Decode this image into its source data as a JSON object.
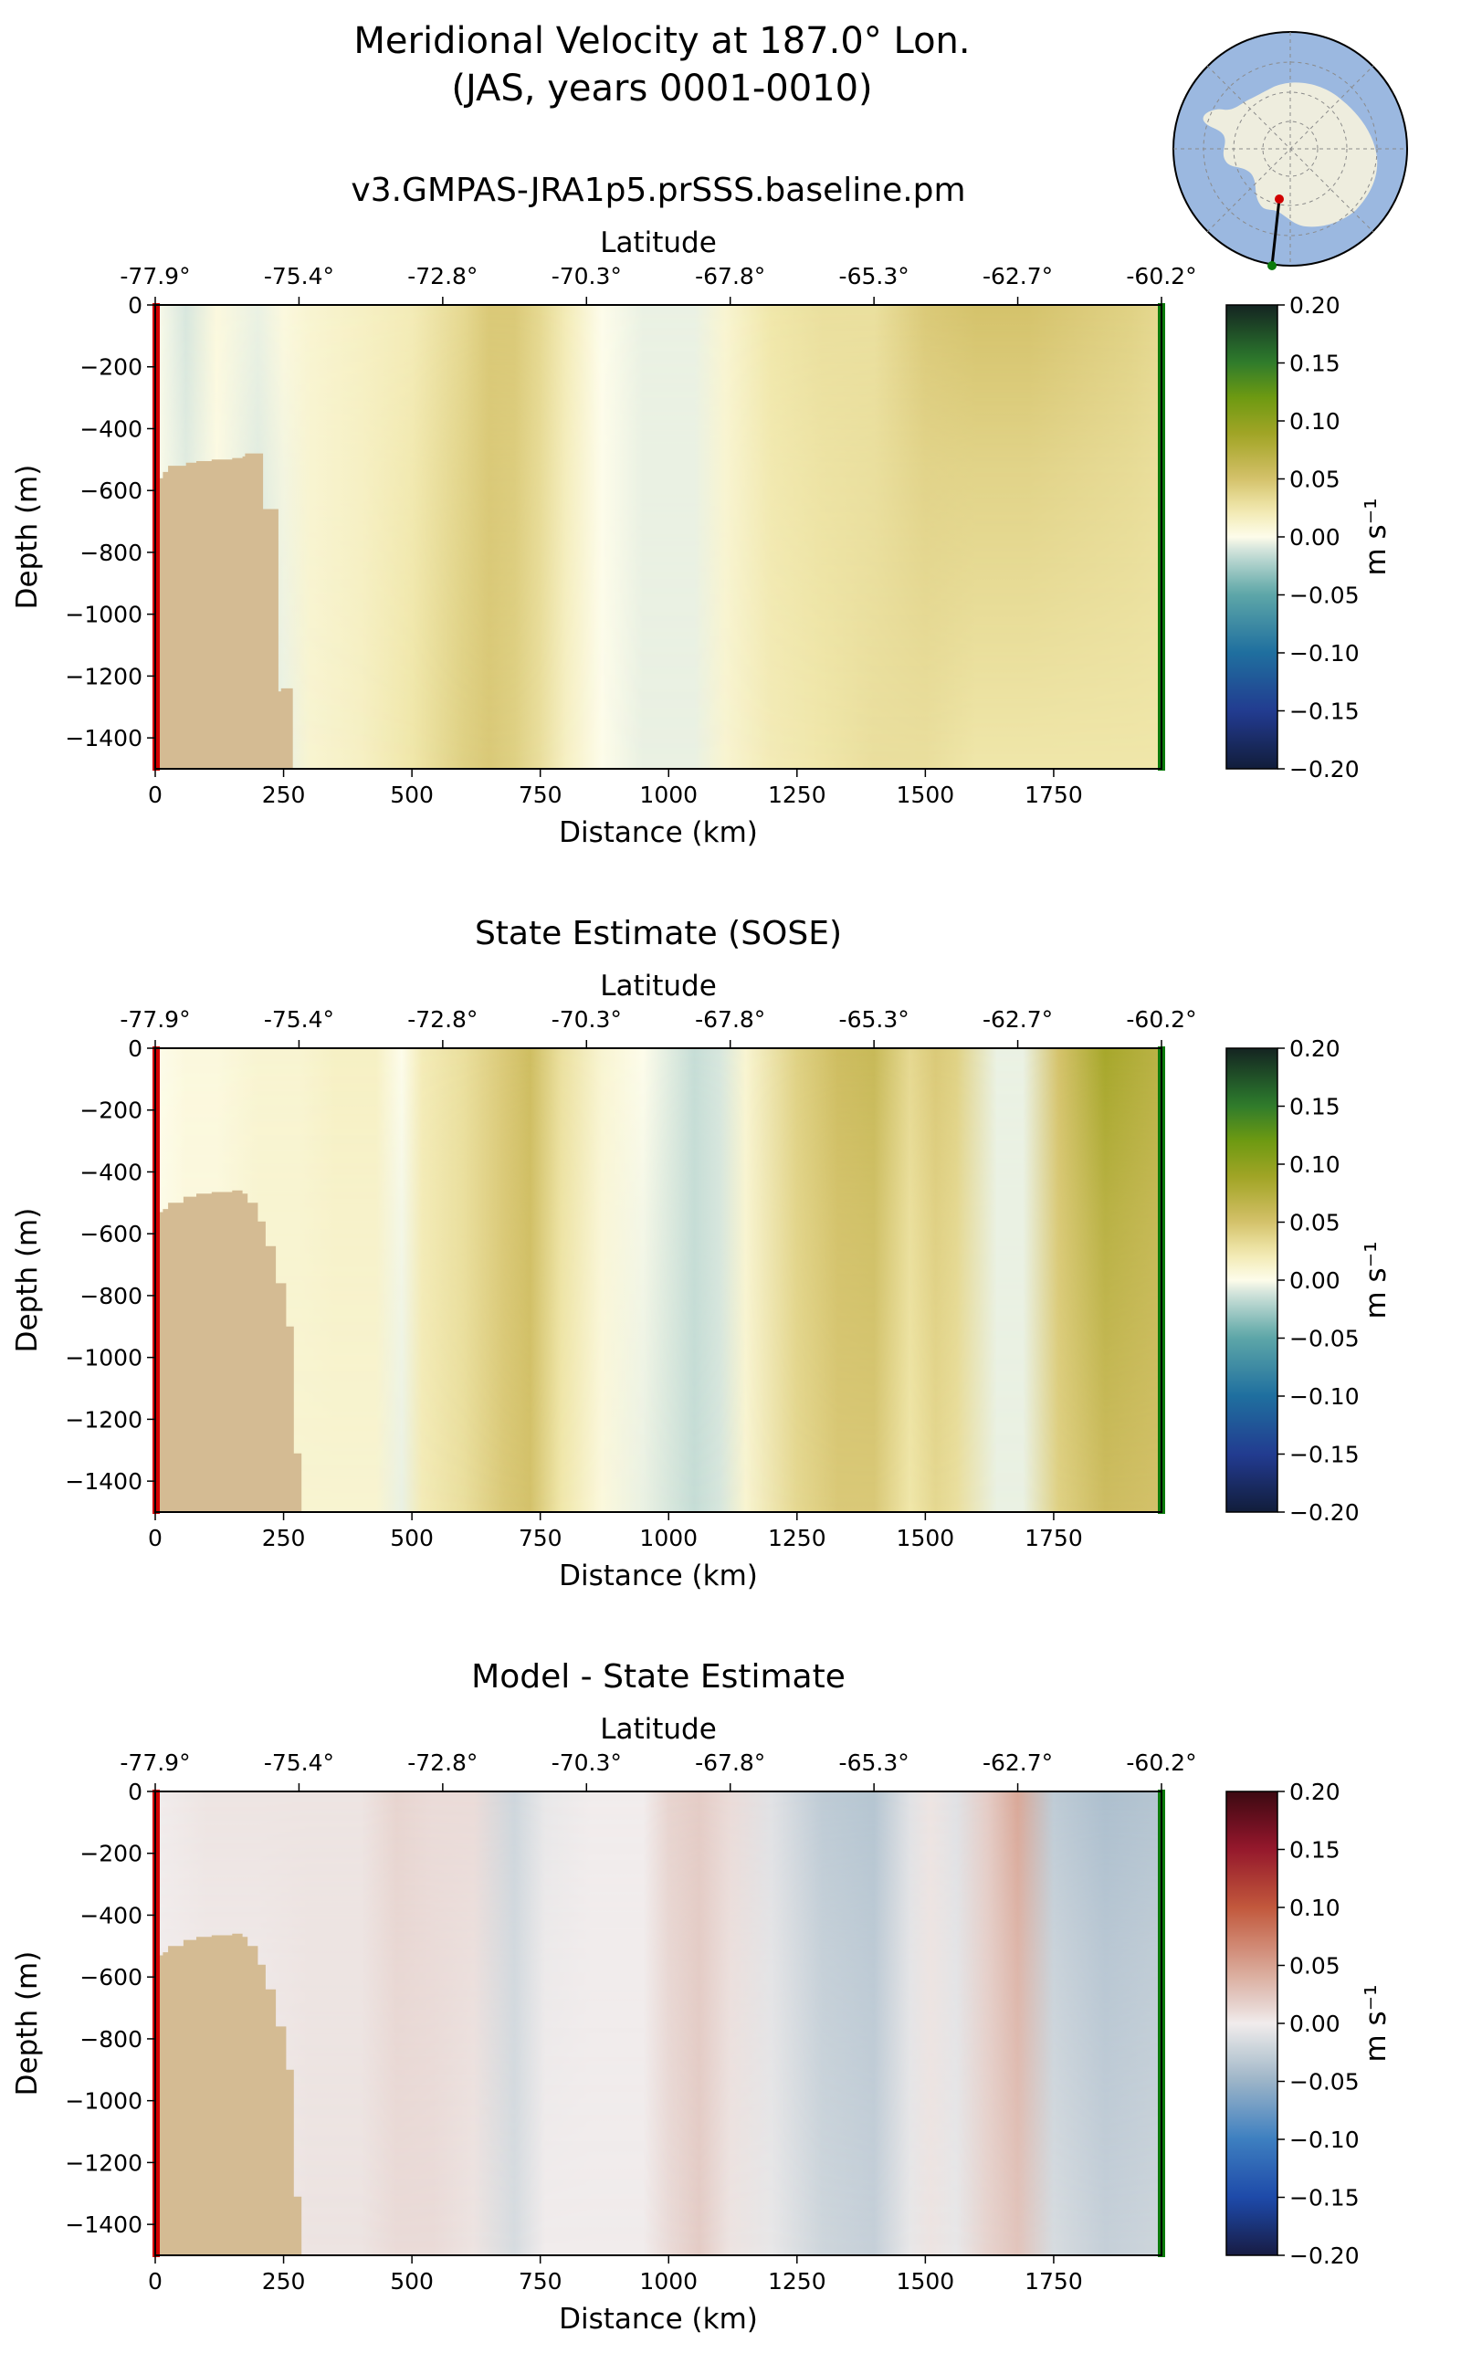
{
  "figure": {
    "title_line1": "Meridional Velocity at 187.0° Lon.",
    "title_line2": "(JAS, years 0001-0010)"
  },
  "inset_map": {
    "description": "Antarctic polar stereographic map with transect line from red start point near coast to green end point offshore"
  },
  "colors": {
    "ocean": "#9bb8e0",
    "land": "#eeedde",
    "bathymetry": "#d4bb93",
    "start_marker": "#d10000",
    "end_marker": "#0b7a0b"
  },
  "chart_data": [
    {
      "type": "heatmap",
      "title": "v3.GMPAS-JRA1p5.prSSS.baseline.pm",
      "xlabel": "Distance (km)",
      "ylabel": "Depth (m)",
      "top_xlabel": "Latitude",
      "xlim": [
        0,
        1960
      ],
      "ylim": [
        -1500,
        0
      ],
      "x_ticks": [
        0,
        250,
        500,
        750,
        1000,
        1250,
        1500,
        1750
      ],
      "y_ticks": [
        0,
        -200,
        -400,
        -600,
        -800,
        -1000,
        -1200,
        -1400
      ],
      "lat_ticks": [
        "-77.9°",
        "-75.4°",
        "-72.8°",
        "-70.3°",
        "-67.8°",
        "-65.3°",
        "-62.7°",
        "-60.2°"
      ],
      "colorbar": {
        "label": "m s⁻¹",
        "min": -0.2,
        "max": 0.2,
        "ticks": [
          0.2,
          0.15,
          0.1,
          0.05,
          0.0,
          -0.05,
          -0.1,
          -0.15,
          -0.2
        ],
        "colormap": "delta"
      },
      "columns_km": [
        0,
        60,
        120,
        200,
        250,
        300,
        400,
        500,
        600,
        650,
        700,
        750,
        800,
        870,
        950,
        1050,
        1110,
        1200,
        1300,
        1400,
        1500,
        1600,
        1700,
        1800,
        1900,
        1960
      ],
      "surface_values": [
        0.0,
        -0.01,
        0.005,
        -0.005,
        0.005,
        0.01,
        0.015,
        0.02,
        0.035,
        0.045,
        0.045,
        0.035,
        0.02,
        0.0,
        -0.005,
        -0.005,
        0.01,
        0.025,
        0.03,
        0.03,
        0.045,
        0.05,
        0.05,
        0.045,
        0.04,
        0.035
      ],
      "deep_values": [
        0.0,
        -0.005,
        0.0,
        -0.01,
        -0.005,
        0.01,
        0.015,
        0.025,
        0.04,
        0.045,
        0.04,
        0.03,
        0.015,
        0.0,
        -0.005,
        -0.005,
        0.01,
        0.02,
        0.025,
        0.03,
        0.03,
        0.025,
        0.025,
        0.025,
        0.025,
        0.025
      ],
      "bathymetry": {
        "x_km": [
          0,
          15,
          25,
          60,
          80,
          110,
          150,
          170,
          175,
          210,
          220,
          240,
          245,
          268
        ],
        "depth_m": [
          -560,
          -540,
          -520,
          -510,
          -505,
          -500,
          -495,
          -490,
          -480,
          -660,
          -660,
          -1250,
          -1240,
          -1240
        ]
      }
    },
    {
      "type": "heatmap",
      "title": "State Estimate (SOSE)",
      "xlabel": "Distance (km)",
      "ylabel": "Depth (m)",
      "top_xlabel": "Latitude",
      "xlim": [
        0,
        1960
      ],
      "ylim": [
        -1500,
        0
      ],
      "x_ticks": [
        0,
        250,
        500,
        750,
        1000,
        1250,
        1500,
        1750
      ],
      "y_ticks": [
        0,
        -200,
        -400,
        -600,
        -800,
        -1000,
        -1200,
        -1400
      ],
      "lat_ticks": [
        "-77.9°",
        "-75.4°",
        "-72.8°",
        "-70.3°",
        "-67.8°",
        "-65.3°",
        "-62.7°",
        "-60.2°"
      ],
      "colorbar": {
        "label": "m s⁻¹",
        "min": -0.2,
        "max": 0.2,
        "ticks": [
          0.2,
          0.15,
          0.1,
          0.05,
          0.0,
          -0.05,
          -0.1,
          -0.15,
          -0.2
        ],
        "colormap": "delta"
      },
      "columns_km": [
        0,
        60,
        120,
        200,
        280,
        350,
        430,
        480,
        520,
        600,
        680,
        730,
        790,
        870,
        950,
        1050,
        1100,
        1150,
        1250,
        1330,
        1400,
        1470,
        1520,
        1560,
        1640,
        1690,
        1760,
        1850,
        1960
      ],
      "surface_values": [
        0.0,
        0.005,
        0.005,
        0.01,
        0.01,
        0.015,
        0.015,
        0.0,
        0.02,
        0.03,
        0.045,
        0.055,
        0.03,
        0.01,
        0.0,
        -0.015,
        -0.01,
        0.01,
        0.04,
        0.055,
        0.06,
        0.035,
        0.045,
        0.04,
        -0.005,
        -0.005,
        0.05,
        0.085,
        0.07
      ],
      "deep_values": [
        0.0,
        0.005,
        0.005,
        0.01,
        0.01,
        0.01,
        0.01,
        -0.005,
        0.02,
        0.03,
        0.045,
        0.05,
        0.025,
        0.005,
        -0.005,
        -0.015,
        -0.01,
        0.01,
        0.035,
        0.045,
        0.045,
        0.025,
        0.035,
        0.03,
        -0.005,
        -0.005,
        0.04,
        0.055,
        0.05
      ],
      "bathymetry": {
        "x_km": [
          0,
          15,
          25,
          55,
          80,
          110,
          150,
          170,
          180,
          200,
          215,
          235,
          255,
          270,
          285
        ],
        "depth_m": [
          -530,
          -520,
          -500,
          -480,
          -470,
          -465,
          -460,
          -470,
          -500,
          -560,
          -640,
          -760,
          -900,
          -1310,
          -1310
        ]
      }
    },
    {
      "type": "heatmap",
      "title": "Model - State Estimate",
      "xlabel": "Distance (km)",
      "ylabel": "Depth (m)",
      "top_xlabel": "Latitude",
      "xlim": [
        0,
        1960
      ],
      "ylim": [
        -1500,
        0
      ],
      "x_ticks": [
        0,
        250,
        500,
        750,
        1000,
        1250,
        1500,
        1750
      ],
      "y_ticks": [
        0,
        -200,
        -400,
        -600,
        -800,
        -1000,
        -1200,
        -1400
      ],
      "lat_ticks": [
        "-77.9°",
        "-75.4°",
        "-72.8°",
        "-70.3°",
        "-67.8°",
        "-65.3°",
        "-62.7°",
        "-60.2°"
      ],
      "colorbar": {
        "label": "m s⁻¹",
        "min": -0.2,
        "max": 0.2,
        "ticks": [
          0.2,
          0.15,
          0.1,
          0.05,
          0.0,
          -0.05,
          -0.1,
          -0.15,
          -0.2
        ],
        "colormap": "balance"
      },
      "columns_km": [
        0,
        100,
        200,
        300,
        400,
        470,
        540,
        620,
        700,
        760,
        850,
        950,
        1000,
        1060,
        1120,
        1200,
        1300,
        1400,
        1470,
        1510,
        1560,
        1620,
        1680,
        1750,
        1850,
        1960
      ],
      "surface_values": [
        0.0,
        0.005,
        0.005,
        0.005,
        0.005,
        0.015,
        0.01,
        0.01,
        -0.02,
        -0.005,
        0.0,
        0.0,
        0.015,
        0.02,
        0.01,
        -0.01,
        -0.03,
        -0.035,
        -0.01,
        0.005,
        -0.01,
        0.02,
        0.045,
        -0.03,
        -0.04,
        -0.035
      ],
      "deep_values": [
        0.0,
        0.0,
        0.0,
        0.005,
        0.005,
        0.01,
        0.01,
        0.005,
        -0.015,
        0.0,
        0.0,
        0.0,
        0.01,
        0.02,
        0.005,
        -0.005,
        -0.02,
        -0.025,
        -0.005,
        0.005,
        -0.005,
        0.015,
        0.025,
        -0.015,
        -0.025,
        -0.02
      ],
      "bathymetry": {
        "x_km": [
          0,
          15,
          25,
          55,
          80,
          110,
          150,
          170,
          180,
          200,
          215,
          235,
          255,
          270,
          285
        ],
        "depth_m": [
          -530,
          -520,
          -500,
          -480,
          -470,
          -465,
          -460,
          -470,
          -500,
          -560,
          -640,
          -760,
          -900,
          -1310,
          -1310
        ]
      }
    }
  ]
}
